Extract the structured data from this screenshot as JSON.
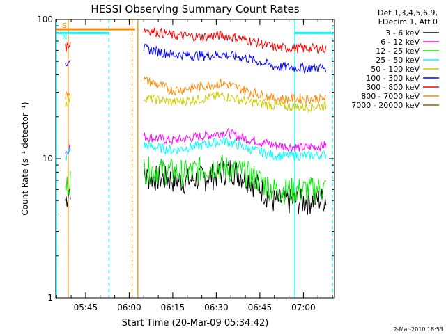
{
  "chart_data": {
    "type": "line",
    "title": "HESSI Observing Summary Count Rates",
    "xlabel": "Start Time (20-Mar-09 05:34:42)",
    "ylabel": "Count Rate (s⁻¹ detector⁻¹)",
    "yscale": "log",
    "ylim": [
      1,
      100
    ],
    "xlim": [
      "05:34:42",
      "07:10:42"
    ],
    "x_ticks": [
      "05:45",
      "06:00",
      "06:15",
      "06:30",
      "06:45",
      "07:00"
    ],
    "y_ticks": [
      "1",
      "10",
      "100"
    ],
    "legend_header": [
      "Det 1,3,4,5,6,9,",
      "FDecim 1, Att 0"
    ],
    "legend_position": "right",
    "series": [
      {
        "name": "3 - 6 keV",
        "color": "#000000",
        "x": [
          "05:38",
          "05:40",
          "06:05",
          "06:20",
          "06:28",
          "06:35",
          "06:42",
          "06:50",
          "07:00",
          "07:08"
        ],
        "y": [
          5.0,
          6.5,
          7.5,
          7.0,
          7.5,
          8.5,
          7.0,
          5.0,
          5.0,
          5.2
        ]
      },
      {
        "name": "6 - 12 keV",
        "color": "#ff00ff",
        "x": [
          "05:38",
          "05:40",
          "06:05",
          "06:15",
          "06:25",
          "06:33",
          "06:40",
          "06:50",
          "07:00",
          "07:08"
        ],
        "y": [
          11.0,
          12.5,
          14.5,
          13.5,
          14.5,
          15.5,
          14.0,
          12.5,
          12.0,
          12.5
        ]
      },
      {
        "name": "12 - 25 keV",
        "color": "#00ee00",
        "x": [
          "05:38",
          "05:40",
          "06:05",
          "06:20",
          "06:30",
          "06:40",
          "06:50",
          "07:00",
          "07:08"
        ],
        "y": [
          6.0,
          7.5,
          8.5,
          8.0,
          9.0,
          8.0,
          6.0,
          6.0,
          6.2
        ]
      },
      {
        "name": "25 - 50 keV",
        "color": "#00ffff",
        "x": [
          "05:38",
          "05:40",
          "06:05",
          "06:15",
          "06:25",
          "06:33",
          "06:40",
          "06:50",
          "07:00",
          "07:08"
        ],
        "y": [
          10.0,
          12.0,
          12.5,
          11.5,
          12.5,
          13.5,
          12.0,
          10.5,
          10.5,
          10.7
        ]
      },
      {
        "name": "50 - 100 keV",
        "color": "#cccc00",
        "x": [
          "05:38",
          "05:40",
          "06:05",
          "06:15",
          "06:25",
          "06:32",
          "06:40",
          "06:50",
          "07:00",
          "07:08"
        ],
        "y": [
          25.0,
          27.0,
          27.5,
          25.5,
          27.0,
          28.5,
          26.0,
          24.0,
          23.5,
          24.0
        ]
      },
      {
        "name": "100 - 300 keV",
        "color": "#0000ff",
        "x": [
          "05:38",
          "05:40",
          "06:05",
          "06:15",
          "06:25",
          "06:32",
          "06:40",
          "06:50",
          "07:00",
          "07:08"
        ],
        "y": [
          48.0,
          55.0,
          62.0,
          56.0,
          55.0,
          56.0,
          53.0,
          46.0,
          45.0,
          45.0
        ]
      },
      {
        "name": "300 - 800 keV",
        "color": "#ff0000",
        "x": [
          "05:38",
          "05:40",
          "06:05",
          "06:15",
          "06:25",
          "06:32",
          "06:40",
          "06:50",
          "07:00",
          "07:08"
        ],
        "y": [
          62.0,
          70.0,
          85.0,
          77.0,
          75.0,
          77.0,
          72.0,
          63.0,
          62.0,
          62.0
        ]
      },
      {
        "name": "800 - 7000 keV",
        "color": "#ff8800",
        "x": [
          "05:38",
          "05:40",
          "06:05",
          "06:15",
          "06:25",
          "06:32",
          "06:40",
          "06:50",
          "07:00",
          "07:08"
        ],
        "y": [
          28.0,
          31.0,
          37.0,
          31.0,
          33.0,
          35.0,
          31.0,
          27.0,
          27.0,
          27.0
        ]
      },
      {
        "name": "7000 - 20000 keV",
        "color": "#886600",
        "x": [],
        "y": []
      }
    ],
    "flag_bars": [
      {
        "label": "S",
        "color": "#ff8800",
        "y": 85,
        "x_start": "05:34:42",
        "x_end": "06:02"
      },
      {
        "label": "N",
        "color": "#00ffff",
        "y": 80,
        "x_start": "05:34:42",
        "x_end": "05:53"
      },
      {
        "label": "",
        "color": "#00ffff",
        "y": 80,
        "x_start": "06:57",
        "x_end": "07:10:42"
      }
    ],
    "vertical_markers": [
      {
        "color": "#00ffff",
        "style": "solid",
        "x": "05:35"
      },
      {
        "color": "#00ffff",
        "style": "dashed",
        "x": "05:53"
      },
      {
        "color": "#00ffff",
        "style": "solid",
        "x": "06:03"
      },
      {
        "color": "#00ffff",
        "style": "solid",
        "x": "06:57"
      },
      {
        "color": "#00ffff",
        "style": "dashed",
        "x": "07:10"
      },
      {
        "color": "#ff8800",
        "style": "solid",
        "x": "05:39"
      },
      {
        "color": "#ff8800",
        "style": "dashed",
        "x": "06:01"
      },
      {
        "color": "#ff8800",
        "style": "solid",
        "x": "06:03"
      }
    ]
  },
  "footer": {
    "timestamp": "2-Mar-2010 18:53"
  }
}
